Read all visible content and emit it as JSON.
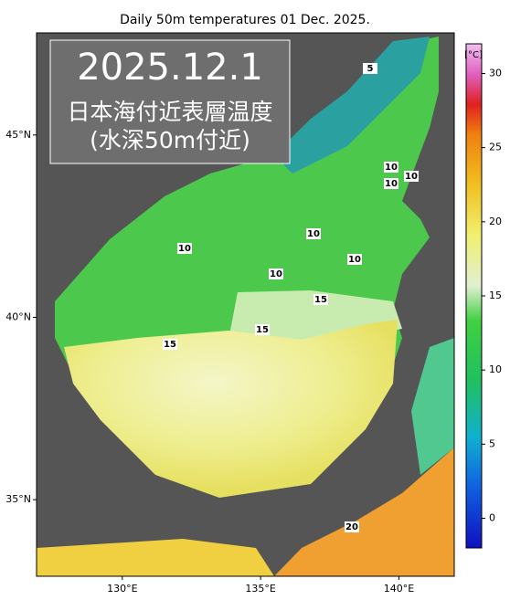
{
  "title": "Daily 50m temperatures 01 Dec. 2025.",
  "overlay": {
    "date": "2025.12.1",
    "line1": "日本海付近表層温度",
    "line2": "(水深50m付近)"
  },
  "map": {
    "lat_range": [
      32.9,
      47.8
    ],
    "lon_range": [
      126.9,
      142.0
    ],
    "lat_ticks": [
      {
        "value": 35,
        "label": "35°N"
      },
      {
        "value": 40,
        "label": "40°N"
      },
      {
        "value": 45,
        "label": "45°N"
      }
    ],
    "lon_ticks": [
      {
        "value": 130,
        "label": "130°E"
      },
      {
        "value": 135,
        "label": "135°E"
      },
      {
        "value": 140,
        "label": "140°E"
      }
    ]
  },
  "colorbar": {
    "unit": "[°C]",
    "range": [
      -2,
      32
    ],
    "ticks": [
      0,
      5,
      10,
      15,
      20,
      25,
      30
    ]
  },
  "contour_labels": [
    5,
    10,
    10,
    10,
    10,
    10,
    10,
    10,
    15,
    15,
    15,
    20
  ]
}
